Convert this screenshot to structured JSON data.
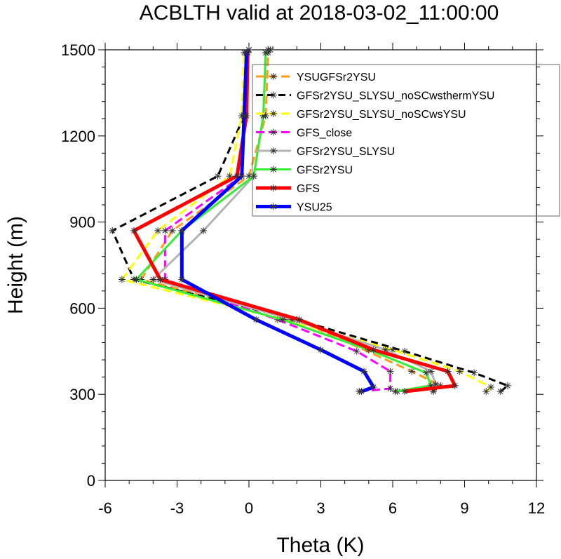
{
  "chart_data": {
    "type": "line",
    "title": "ACBLTH valid at 2018-03-02_11:00:00",
    "xlabel": "Theta (K)",
    "ylabel": "Height (m)",
    "xlim": [
      -6,
      12
    ],
    "ylim": [
      0,
      1500
    ],
    "x_ticks": [
      -6,
      -3,
      0,
      3,
      6,
      9,
      12
    ],
    "x_tick_labels": [
      "-6",
      "-3",
      "0",
      "3",
      "6",
      "9",
      "12"
    ],
    "y_ticks": [
      0,
      300,
      600,
      900,
      1200,
      1500
    ],
    "y_tick_labels": [
      "0",
      "300",
      "600",
      "900",
      "1200",
      "1500"
    ],
    "grid": false,
    "legend": "top-right",
    "series": [
      {
        "name": "YSUGFSr2YSU",
        "color": "#ff9a1a",
        "dash": "12,6",
        "width": 3,
        "x": [
          7.7,
          7.7,
          8.0,
          6.8,
          2.0,
          -4.5,
          -3.2,
          0.0,
          0.7,
          0.8,
          0.9
        ],
        "y": [
          310,
          315,
          330,
          380,
          560,
          700,
          870,
          1060,
          1270,
          1490,
          1500
        ]
      },
      {
        "name": "GFSr2YSU_SLYSU_noSCwsthermYSU",
        "color": "#000000",
        "dash": "10,6",
        "width": 3,
        "x": [
          10.5,
          10.8,
          9.4,
          6.5,
          2.0,
          -4.8,
          -5.7,
          -1.3,
          -0.2,
          -0.1,
          0.0
        ],
        "y": [
          310,
          330,
          375,
          450,
          560,
          700,
          870,
          1060,
          1270,
          1490,
          1500
        ]
      },
      {
        "name": "GFSr2YSU_SLYSU_noSCwsYSU",
        "color": "#ffff00",
        "dash": "12,6",
        "width": 3,
        "x": [
          9.9,
          10.1,
          8.8,
          6.0,
          1.5,
          -5.3,
          -3.8,
          -0.8,
          -0.3,
          -0.2,
          0.0
        ],
        "y": [
          310,
          325,
          380,
          455,
          560,
          700,
          870,
          1060,
          1270,
          1490,
          1500
        ]
      },
      {
        "name": "GFS_close",
        "color": "#ff00ff",
        "dash": "12,6",
        "width": 3,
        "x": [
          4.6,
          5.9,
          5.9,
          4.5,
          1.2,
          -3.5,
          -3.5,
          -0.3,
          -0.2,
          -0.1,
          0.0
        ],
        "y": [
          310,
          320,
          380,
          450,
          560,
          700,
          870,
          1060,
          1270,
          1490,
          1500
        ]
      },
      {
        "name": "GFSr2YSU_SLYSU",
        "color": "#b3b3b3",
        "dash": "",
        "width": 3,
        "x": [
          6.2,
          7.8,
          7.6,
          5.7,
          1.8,
          -4.0,
          -1.9,
          0.2,
          0.6,
          0.7,
          0.8
        ],
        "y": [
          310,
          335,
          380,
          455,
          560,
          700,
          870,
          1060,
          1270,
          1490,
          1500
        ]
      },
      {
        "name": "GFSr2YSU",
        "color": "#33ee33",
        "dash": "",
        "width": 3,
        "x": [
          6.1,
          7.6,
          7.4,
          5.0,
          1.4,
          -4.7,
          -2.8,
          0.2,
          0.6,
          0.7,
          0.8
        ],
        "y": [
          310,
          330,
          375,
          455,
          560,
          700,
          870,
          1060,
          1270,
          1490,
          1500
        ]
      },
      {
        "name": "GFS",
        "color": "#ff0000",
        "dash": "",
        "width": 5,
        "x": [
          6.5,
          8.6,
          8.3,
          5.2,
          2.1,
          -3.7,
          -4.8,
          -0.5,
          -0.1,
          -0.05,
          0.0
        ],
        "y": [
          310,
          330,
          380,
          455,
          560,
          700,
          870,
          1060,
          1270,
          1490,
          1500
        ]
      },
      {
        "name": "YSU25",
        "color": "#0000ff",
        "dash": "",
        "width": 5,
        "x": [
          4.7,
          5.2,
          4.8,
          3.0,
          0.3,
          -2.8,
          -2.8,
          -0.3,
          -0.2,
          -0.1,
          0.0
        ],
        "y": [
          310,
          325,
          380,
          455,
          560,
          700,
          870,
          1060,
          1270,
          1490,
          1500
        ]
      }
    ]
  }
}
